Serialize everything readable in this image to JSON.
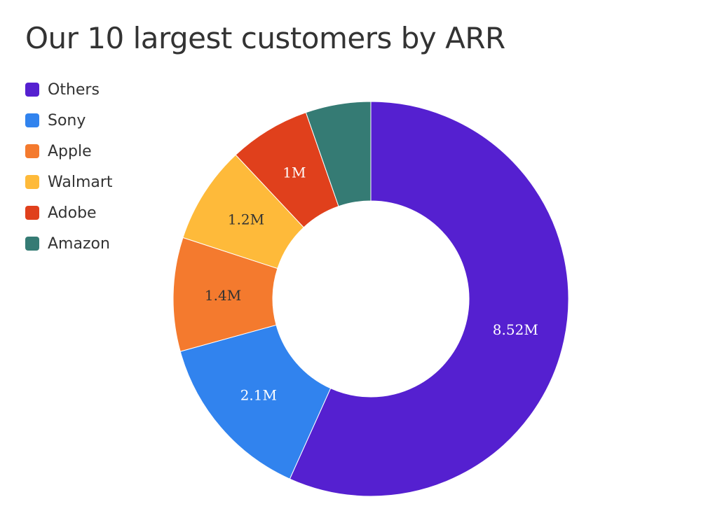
{
  "chart_data": {
    "type": "pie",
    "variant": "donut",
    "title": "Our 10 largest customers by ARR",
    "legend_position": "top-left",
    "slices": [
      {
        "name": "Others",
        "value": 8.52,
        "label": "8.52M",
        "color": "#5520D0",
        "label_color": "#ffffff"
      },
      {
        "name": "Sony",
        "value": 2.1,
        "label": "2.1M",
        "color": "#3183EE",
        "label_color": "#ffffff"
      },
      {
        "name": "Apple",
        "value": 1.4,
        "label": "1.4M",
        "color": "#F47A2E",
        "label_color": "#333333"
      },
      {
        "name": "Walmart",
        "value": 1.2,
        "label": "1.2M",
        "color": "#FEBA3A",
        "label_color": "#333333"
      },
      {
        "name": "Adobe",
        "value": 1.0,
        "label": "1M",
        "color": "#E0401C",
        "label_color": "#ffffff"
      },
      {
        "name": "Amazon",
        "value": 0.8,
        "label": "",
        "color": "#357B74",
        "label_color": "#ffffff"
      }
    ]
  }
}
